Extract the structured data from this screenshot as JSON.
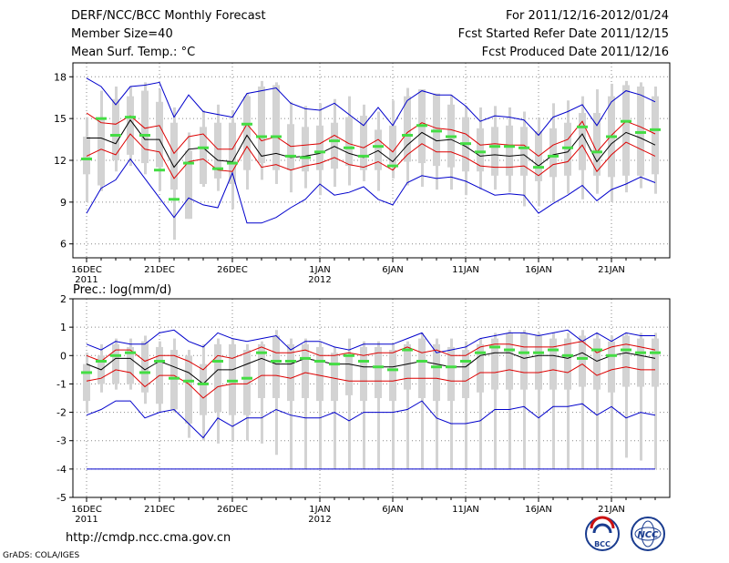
{
  "header": {
    "title": "DERF/NCC/BCC Monthly Forecast",
    "member": "Member Size=40",
    "variable": "Mean Surf. Temp.: °C",
    "period": "For 2011/12/16-2012/01/24",
    "started": "Fcst Started Refer Date 2011/12/15",
    "produced": "Fcst Produced Date 2011/12/16"
  },
  "footer": {
    "url": "http://cmdp.ncc.cma.gov.cn",
    "grads": "GrADS: COLA/IGES",
    "logo_bcc": "BCC",
    "logo_ncc": "NCC"
  },
  "colors": {
    "box": "#d3d3d3",
    "median": "#44dd44",
    "mean": "#000000",
    "band": "#dd0000",
    "extreme": "#0000cc",
    "grid": "#888888"
  },
  "chart_data": [
    {
      "type": "box-whisker",
      "name": "temperature",
      "title": "Mean Surf. Temp.: °C",
      "ylabel": "°C",
      "ylim": [
        5,
        19
      ],
      "yticks": [
        6,
        9,
        12,
        15,
        18
      ],
      "xtick_labels": [
        "16DEC",
        "21DEC",
        "26DEC",
        "1JAN",
        "6JAN",
        "11JAN",
        "16JAN",
        "21JAN"
      ],
      "xtick_index": [
        0,
        5,
        10,
        16,
        21,
        26,
        31,
        36
      ],
      "year_labels": [
        {
          "index": 0,
          "label": "2011"
        },
        {
          "index": 16,
          "label": "2012"
        }
      ],
      "days": 40,
      "box_low": [
        11.0,
        10.2,
        12.0,
        12.4,
        11.8,
        11.5,
        9.9,
        7.8,
        10.3,
        10.7,
        10.3,
        11.3,
        11.8,
        11.3,
        11.3,
        11.2,
        11.3,
        11.4,
        11.6,
        11.3,
        11.3,
        11.7,
        11.9,
        11.8,
        11.6,
        11.5,
        11.2,
        11.2,
        10.9,
        10.9,
        10.9,
        10.5,
        10.8,
        10.9,
        11.3,
        10.9,
        10.8,
        10.9,
        10.9,
        11.0
      ],
      "box_high": [
        13.7,
        15.0,
        16.4,
        16.6,
        17.0,
        16.2,
        14.7,
        12.7,
        14.4,
        14.7,
        14.7,
        16.6,
        17.3,
        17.4,
        14.6,
        14.4,
        14.5,
        14.7,
        15.1,
        15.2,
        14.2,
        14.5,
        16.6,
        17.1,
        16.8,
        16.0,
        15.1,
        14.3,
        14.4,
        14.5,
        14.4,
        14.1,
        14.3,
        14.7,
        15.4,
        15.4,
        16.6,
        17.4,
        17.3,
        16.6
      ],
      "whisker_low": [
        9.0,
        9.8,
        11.2,
        11.6,
        11.0,
        9.8,
        6.3,
        7.8,
        10.1,
        9.8,
        8.5,
        9.9,
        10.6,
        10.3,
        9.7,
        10.0,
        9.5,
        10.1,
        10.2,
        10.5,
        9.8,
        10.7,
        10.2,
        10.1,
        9.9,
        9.9,
        9.5,
        9.9,
        9.9,
        9.7,
        8.7,
        8.7,
        9.0,
        9.6,
        9.2,
        9.6,
        9.0,
        9.7,
        10.0,
        9.6
      ],
      "whisker_high": [
        15.1,
        17.0,
        17.3,
        17.3,
        17.6,
        17.1,
        15.8,
        14.0,
        15.6,
        16.0,
        15.6,
        16.8,
        17.7,
        17.6,
        16.2,
        15.9,
        16.1,
        16.4,
        16.6,
        16.0,
        15.5,
        16.3,
        17.2,
        16.8,
        16.7,
        16.7,
        15.9,
        15.8,
        15.9,
        15.8,
        15.5,
        15.0,
        16.1,
        16.3,
        16.6,
        17.1,
        17.5,
        17.7,
        17.6,
        17.3
      ],
      "median": [
        12.1,
        15.0,
        13.8,
        15.1,
        13.8,
        11.3,
        9.2,
        11.8,
        12.9,
        11.4,
        11.8,
        14.6,
        13.7,
        13.7,
        12.3,
        12.2,
        12.6,
        13.4,
        12.9,
        12.3,
        13.0,
        11.6,
        13.8,
        14.5,
        14.1,
        13.7,
        13.2,
        12.6,
        13.0,
        13.0,
        12.9,
        11.5,
        12.3,
        12.9,
        14.4,
        12.6,
        13.7,
        14.8,
        14.0,
        14.2
      ],
      "mean": [
        13.6,
        13.6,
        13.2,
        14.9,
        13.5,
        13.5,
        11.5,
        12.8,
        12.9,
        12.0,
        11.9,
        13.8,
        12.3,
        12.5,
        12.2,
        12.3,
        12.5,
        13.0,
        12.5,
        12.2,
        12.7,
        11.9,
        13.1,
        14.0,
        13.4,
        13.5,
        13.0,
        12.3,
        12.4,
        12.3,
        12.4,
        11.6,
        12.4,
        12.6,
        13.9,
        11.9,
        13.2,
        14.0,
        13.6,
        13.1
      ],
      "band_upper": [
        15.4,
        14.7,
        14.6,
        15.2,
        14.3,
        14.5,
        12.5,
        13.7,
        13.9,
        12.8,
        12.8,
        14.6,
        13.4,
        13.7,
        13.0,
        13.1,
        13.2,
        13.8,
        13.2,
        12.9,
        13.5,
        12.6,
        14.0,
        14.7,
        14.3,
        14.2,
        13.9,
        13.1,
        13.2,
        13.1,
        13.1,
        12.3,
        13.1,
        13.5,
        14.8,
        12.6,
        13.8,
        14.8,
        14.4,
        13.9
      ],
      "band_lower": [
        12.3,
        12.8,
        12.4,
        13.9,
        12.8,
        12.6,
        10.7,
        11.9,
        12.1,
        11.3,
        11.2,
        13.0,
        11.5,
        11.7,
        11.3,
        11.6,
        11.8,
        12.2,
        11.7,
        11.5,
        11.9,
        11.3,
        12.4,
        13.2,
        12.6,
        12.6,
        12.2,
        11.6,
        11.5,
        11.5,
        11.6,
        10.9,
        11.7,
        11.9,
        13.1,
        11.2,
        12.4,
        13.3,
        12.8,
        12.3
      ],
      "max_line": [
        17.9,
        17.3,
        16.0,
        17.3,
        17.4,
        17.6,
        15.1,
        16.7,
        15.5,
        15.3,
        15.1,
        16.8,
        17.0,
        17.2,
        16.1,
        15.7,
        15.6,
        16.1,
        15.3,
        14.5,
        15.8,
        14.5,
        16.3,
        17.0,
        16.7,
        16.7,
        15.9,
        14.8,
        15.2,
        15.1,
        14.9,
        13.8,
        15.1,
        15.5,
        16.0,
        14.5,
        16.2,
        17.0,
        16.7,
        16.2
      ],
      "min_line": [
        8.2,
        10.0,
        10.6,
        12.1,
        10.7,
        9.3,
        7.9,
        9.3,
        8.8,
        8.6,
        11.1,
        7.5,
        7.5,
        7.9,
        8.6,
        9.2,
        10.3,
        9.5,
        9.7,
        10.1,
        9.2,
        8.8,
        10.4,
        10.9,
        10.7,
        10.8,
        10.5,
        10.0,
        9.5,
        9.6,
        9.5,
        8.2,
        8.9,
        9.5,
        10.2,
        9.1,
        9.9,
        10.3,
        10.8,
        10.4
      ]
    },
    {
      "type": "box-whisker",
      "name": "precipitation",
      "title": "Prec.: log(mm/d)",
      "ylabel": "log(mm/d)",
      "ylim": [
        -5,
        2
      ],
      "yticks": [
        -5,
        -4,
        -3,
        -2,
        -1,
        0,
        1,
        2
      ],
      "xtick_labels": [
        "16DEC",
        "21DEC",
        "26DEC",
        "1JAN",
        "6JAN",
        "11JAN",
        "16JAN",
        "21JAN"
      ],
      "xtick_index": [
        0,
        5,
        10,
        16,
        21,
        26,
        31,
        36
      ],
      "year_labels": [
        {
          "index": 0,
          "label": "2011"
        },
        {
          "index": 16,
          "label": "2012"
        }
      ],
      "days": 40,
      "floor_value": -4.0,
      "box_low": [
        -1.6,
        -1.0,
        -1.0,
        -1.0,
        -1.3,
        -1.7,
        -1.9,
        -2.4,
        -2.1,
        -2.0,
        -2.1,
        -2.1,
        -1.5,
        -1.5,
        -1.6,
        -1.5,
        -1.6,
        -1.6,
        -1.4,
        -1.6,
        -1.5,
        -1.6,
        -1.2,
        -1.5,
        -1.6,
        -1.6,
        -1.5,
        -1.3,
        -1.2,
        -1.2,
        -1.2,
        -1.2,
        -1.2,
        -1.2,
        -1.1,
        -1.2,
        -1.3,
        -1.1,
        -1.1,
        -1.1
      ],
      "box_high": [
        -0.3,
        0.0,
        0.4,
        0.3,
        0.5,
        0.3,
        0.2,
        0.0,
        -0.3,
        0.4,
        0.4,
        0.2,
        0.4,
        0.7,
        0.4,
        0.4,
        0.3,
        0.1,
        0.0,
        0.3,
        0.3,
        0.2,
        0.4,
        0.6,
        0.4,
        0.3,
        0.2,
        0.4,
        0.6,
        0.8,
        0.8,
        0.7,
        0.6,
        0.6,
        0.7,
        0.6,
        0.5,
        0.7,
        0.6,
        0.6
      ],
      "whisker_low": [
        -2.0,
        -1.3,
        -1.2,
        -1.2,
        -1.7,
        -2.0,
        -2.0,
        -2.9,
        -3.0,
        -3.1,
        -3.0,
        -3.0,
        -3.1,
        -3.5,
        -4.0,
        -4.0,
        -4.0,
        -4.0,
        -4.0,
        -4.0,
        -4.0,
        -4.0,
        -4.0,
        -4.0,
        -4.0,
        -4.0,
        -4.0,
        -4.0,
        -4.0,
        -4.0,
        -4.0,
        -4.0,
        -4.0,
        -4.0,
        -4.0,
        -4.0,
        -4.0,
        -3.6,
        -3.7,
        -4.0
      ],
      "whisker_high": [
        0.1,
        0.4,
        0.6,
        0.6,
        0.7,
        0.5,
        0.6,
        0.2,
        0.4,
        0.6,
        0.6,
        0.4,
        0.5,
        0.9,
        0.6,
        0.6,
        0.5,
        0.3,
        0.6,
        0.5,
        0.5,
        0.4,
        0.5,
        0.8,
        0.6,
        0.6,
        0.5,
        0.6,
        0.8,
        0.9,
        0.9,
        0.8,
        0.8,
        0.8,
        0.9,
        0.8,
        0.7,
        0.8,
        0.8,
        0.8
      ],
      "median": [
        -0.6,
        -0.2,
        0.0,
        0.1,
        -0.6,
        -0.2,
        -0.8,
        -0.9,
        -1.0,
        -0.2,
        -0.9,
        -0.8,
        0.1,
        -0.2,
        -0.2,
        -0.1,
        -0.2,
        -0.3,
        0.0,
        -0.2,
        -0.4,
        -0.5,
        0.2,
        -0.2,
        -0.4,
        -0.4,
        -0.2,
        0.1,
        0.3,
        0.2,
        0.1,
        0.1,
        0.2,
        0.0,
        -0.1,
        0.2,
        0.0,
        0.2,
        0.1,
        0.1
      ],
      "mean": [
        -0.3,
        -0.5,
        -0.1,
        -0.1,
        -0.5,
        -0.2,
        -0.4,
        -0.6,
        -1.0,
        -0.5,
        -0.5,
        -0.3,
        -0.1,
        -0.3,
        -0.3,
        -0.1,
        -0.2,
        -0.3,
        -0.3,
        -0.4,
        -0.4,
        -0.4,
        -0.3,
        -0.2,
        -0.3,
        -0.4,
        -0.4,
        0.0,
        0.1,
        0.1,
        -0.1,
        0.0,
        0.0,
        -0.1,
        0.1,
        -0.2,
        0.0,
        0.1,
        0.0,
        -0.1
      ],
      "band_upper": [
        0.0,
        -0.2,
        0.2,
        0.2,
        -0.2,
        0.0,
        0.0,
        -0.2,
        -0.5,
        0.0,
        -0.1,
        0.1,
        0.3,
        0.1,
        0.1,
        0.2,
        0.0,
        0.0,
        0.1,
        0.0,
        0.1,
        0.1,
        0.3,
        0.1,
        0.2,
        0.0,
        0.0,
        0.3,
        0.4,
        0.4,
        0.3,
        0.3,
        0.3,
        0.4,
        0.5,
        0.1,
        0.3,
        0.4,
        0.3,
        0.2
      ],
      "band_lower": [
        -0.9,
        -0.8,
        -0.5,
        -0.6,
        -1.1,
        -0.7,
        -0.7,
        -1.0,
        -1.5,
        -1.1,
        -1.0,
        -1.0,
        -0.7,
        -0.7,
        -0.8,
        -0.6,
        -0.7,
        -0.8,
        -0.9,
        -0.9,
        -0.9,
        -0.9,
        -0.8,
        -0.8,
        -0.8,
        -0.9,
        -0.9,
        -0.6,
        -0.6,
        -0.5,
        -0.6,
        -0.6,
        -0.5,
        -0.6,
        -0.3,
        -0.7,
        -0.5,
        -0.4,
        -0.5,
        -0.5
      ],
      "max_line": [
        0.4,
        0.2,
        0.5,
        0.4,
        0.4,
        0.8,
        0.9,
        0.5,
        0.3,
        0.8,
        0.6,
        0.5,
        0.6,
        0.7,
        0.2,
        0.5,
        0.5,
        0.3,
        0.2,
        0.4,
        0.4,
        0.4,
        0.6,
        0.8,
        0.1,
        0.2,
        0.3,
        0.6,
        0.7,
        0.8,
        0.8,
        0.7,
        0.8,
        0.9,
        0.5,
        0.8,
        0.5,
        0.8,
        0.7,
        0.7
      ],
      "min_line": [
        -2.1,
        -1.9,
        -1.6,
        -1.6,
        -2.2,
        -2.0,
        -1.9,
        -2.4,
        -2.9,
        -2.2,
        -2.5,
        -2.2,
        -2.2,
        -1.9,
        -2.1,
        -2.2,
        -2.2,
        -2.0,
        -2.3,
        -2.0,
        -2.0,
        -2.0,
        -1.9,
        -1.6,
        -2.2,
        -2.4,
        -2.4,
        -2.3,
        -1.9,
        -1.9,
        -1.8,
        -2.2,
        -1.8,
        -1.8,
        -1.7,
        -2.1,
        -1.8,
        -2.2,
        -2.0,
        -2.1
      ]
    }
  ]
}
